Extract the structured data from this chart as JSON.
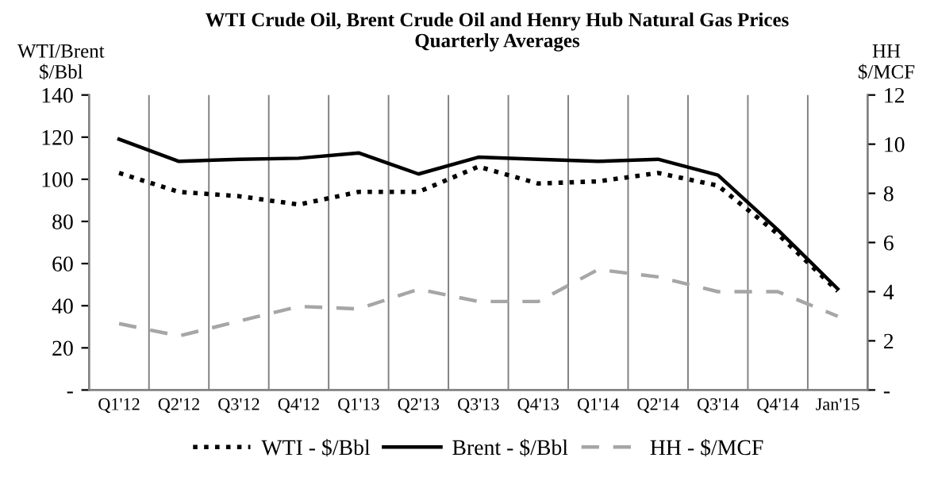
{
  "chart_data": {
    "type": "line",
    "title": "WTI Crude Oil, Brent Crude Oil and Henry Hub Natural Gas Prices\nQuarterly Averages",
    "ylabel": "WTI/Brent\n$/Bbl",
    "y2label": "HH\n$/MCF",
    "categories": [
      "Q1'12",
      "Q2'12",
      "Q3'12",
      "Q4'12",
      "Q1'13",
      "Q2'13",
      "Q3'13",
      "Q4'13",
      "Q1'14",
      "Q2'14",
      "Q3'14",
      "Q4'14",
      "Jan'15"
    ],
    "series": [
      {
        "name": "WTI - $/Bbl",
        "color": "#000000",
        "line_style": "dotted",
        "values": [
          103,
          94,
          92,
          88,
          94,
          94,
          106,
          98,
          99,
          103,
          97,
          74,
          47
        ]
      },
      {
        "name": "Brent - $/Bbl",
        "color": "#000000",
        "line_style": "solid",
        "values": [
          119,
          108.5,
          109.5,
          110,
          112.5,
          102.5,
          110.5,
          109.5,
          108.5,
          109.5,
          102,
          76,
          48
        ]
      },
      {
        "name": "HH - $/MCF",
        "color": "#a6a6a6",
        "line_style": "dashed",
        "axis": "y2",
        "values": [
          2.7,
          2.2,
          2.8,
          3.4,
          3.3,
          4.1,
          3.6,
          3.6,
          4.9,
          4.6,
          4.0,
          4.0,
          3.0
        ]
      }
    ],
    "ylim": [
      0,
      140
    ],
    "yticks": [
      {
        "value": 0,
        "label": "-"
      },
      20,
      40,
      60,
      80,
      100,
      120,
      140
    ],
    "y2lim": [
      0,
      12
    ],
    "y2ticks": [
      {
        "value": 0,
        "label": "-"
      },
      2,
      4,
      6,
      8,
      10,
      12
    ],
    "grid": "x",
    "legend": "bottom",
    "marker": "none"
  }
}
